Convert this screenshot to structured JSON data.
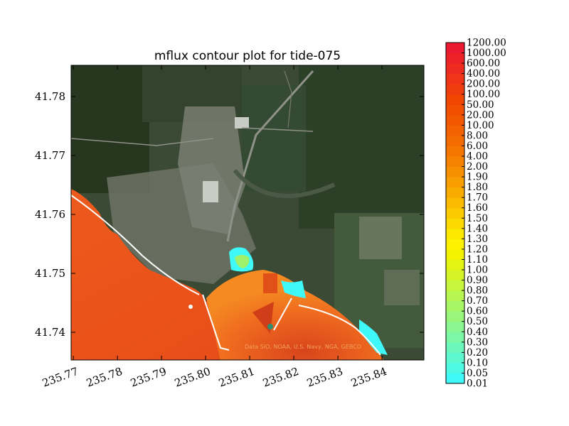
{
  "chart_data": {
    "type": "heatmap",
    "title": "mflux contour plot for tide-075",
    "xlabel": "",
    "ylabel": "",
    "xlim": [
      235.7695,
      235.8495
    ],
    "ylim": [
      41.7353,
      41.7853
    ],
    "x_ticks": [
      "235.77",
      "235.78",
      "235.79",
      "235.80",
      "235.81",
      "235.82",
      "235.83",
      "235.84"
    ],
    "x_tick_values": [
      235.77,
      235.78,
      235.79,
      235.8,
      235.81,
      235.82,
      235.83,
      235.84
    ],
    "y_ticks": [
      "41.74",
      "41.75",
      "41.76",
      "41.77",
      "41.78"
    ],
    "y_tick_values": [
      41.74,
      41.75,
      41.76,
      41.77,
      41.78
    ],
    "background": "satellite imagery",
    "attribution": "Data SIO, NOAA, U.S. Navy, NGA, GEBCO",
    "colorbar": {
      "levels": [
        "0.01",
        "0.05",
        "0.10",
        "0.20",
        "0.30",
        "0.40",
        "0.50",
        "0.60",
        "0.70",
        "0.80",
        "0.90",
        "1.00",
        "1.10",
        "1.20",
        "1.30",
        "1.40",
        "1.50",
        "1.60",
        "1.70",
        "1.80",
        "1.90",
        "2.00",
        "4.00",
        "6.00",
        "8.00",
        "10.00",
        "20.00",
        "50.00",
        "100.00",
        "200.00",
        "400.00",
        "600.00",
        "1000.00",
        "1200.00"
      ],
      "colors": [
        "#3ff9f9",
        "#4ef9e4",
        "#5df8cf",
        "#6cf8ba",
        "#7bf7a5",
        "#8af790",
        "#99f67b",
        "#a8f666",
        "#b7f551",
        "#c6f53c",
        "#d5f427",
        "#e4f412",
        "#f3f300",
        "#fef200",
        "#fde800",
        "#fcd900",
        "#fbca00",
        "#fabb00",
        "#f9ac00",
        "#f89e00",
        "#f79000",
        "#f68300",
        "#f57700",
        "#f46c00",
        "#f36200",
        "#f25800",
        "#f24f00",
        "#f14600",
        "#f03d10",
        "#ef3418",
        "#ee2b20",
        "#ed2228",
        "#ec1a30"
      ]
    }
  }
}
